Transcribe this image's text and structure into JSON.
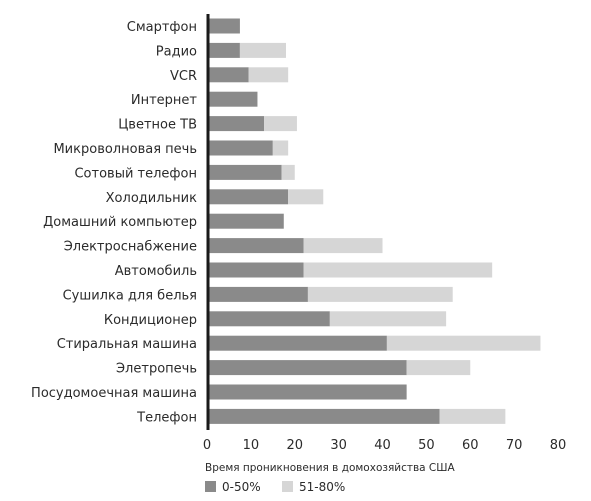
{
  "chart_data": {
    "type": "bar",
    "orientation": "horizontal",
    "stacked": true,
    "categories": [
      "Смартфон",
      "Радио",
      "VCR",
      "Интернет",
      "Цветное ТВ",
      "Микроволновая печь",
      "Сотовый телефон",
      "Холодильник",
      "Домашний компьютер",
      "Электроснабжение",
      "Автомобиль",
      "Сушилка для белья",
      "Кондиционер",
      "Стиральная машина",
      "Элетропечь",
      "Посудомоечная машина",
      "Телефон"
    ],
    "series": [
      {
        "name": "0-50%",
        "color": "#8a8a8a",
        "values": [
          7.5,
          7.5,
          9.5,
          11.5,
          13,
          15,
          17,
          18.5,
          17.5,
          22,
          22,
          23,
          28,
          41,
          45.5,
          45.5,
          53
        ]
      },
      {
        "name": "51-80%",
        "color": "#d6d6d6",
        "values": [
          0,
          10.5,
          9,
          0,
          7.5,
          3.5,
          3,
          8,
          0,
          18,
          43,
          33,
          26.5,
          35,
          14.5,
          0,
          15
        ]
      }
    ],
    "xlabel": "Время проникновения в домохозяйства США",
    "ylabel": "",
    "xlim": [
      0,
      80
    ],
    "xticks": [
      0,
      10,
      20,
      30,
      40,
      50,
      60,
      70,
      80
    ],
    "grid": false,
    "legend_position": "bottom-left"
  }
}
